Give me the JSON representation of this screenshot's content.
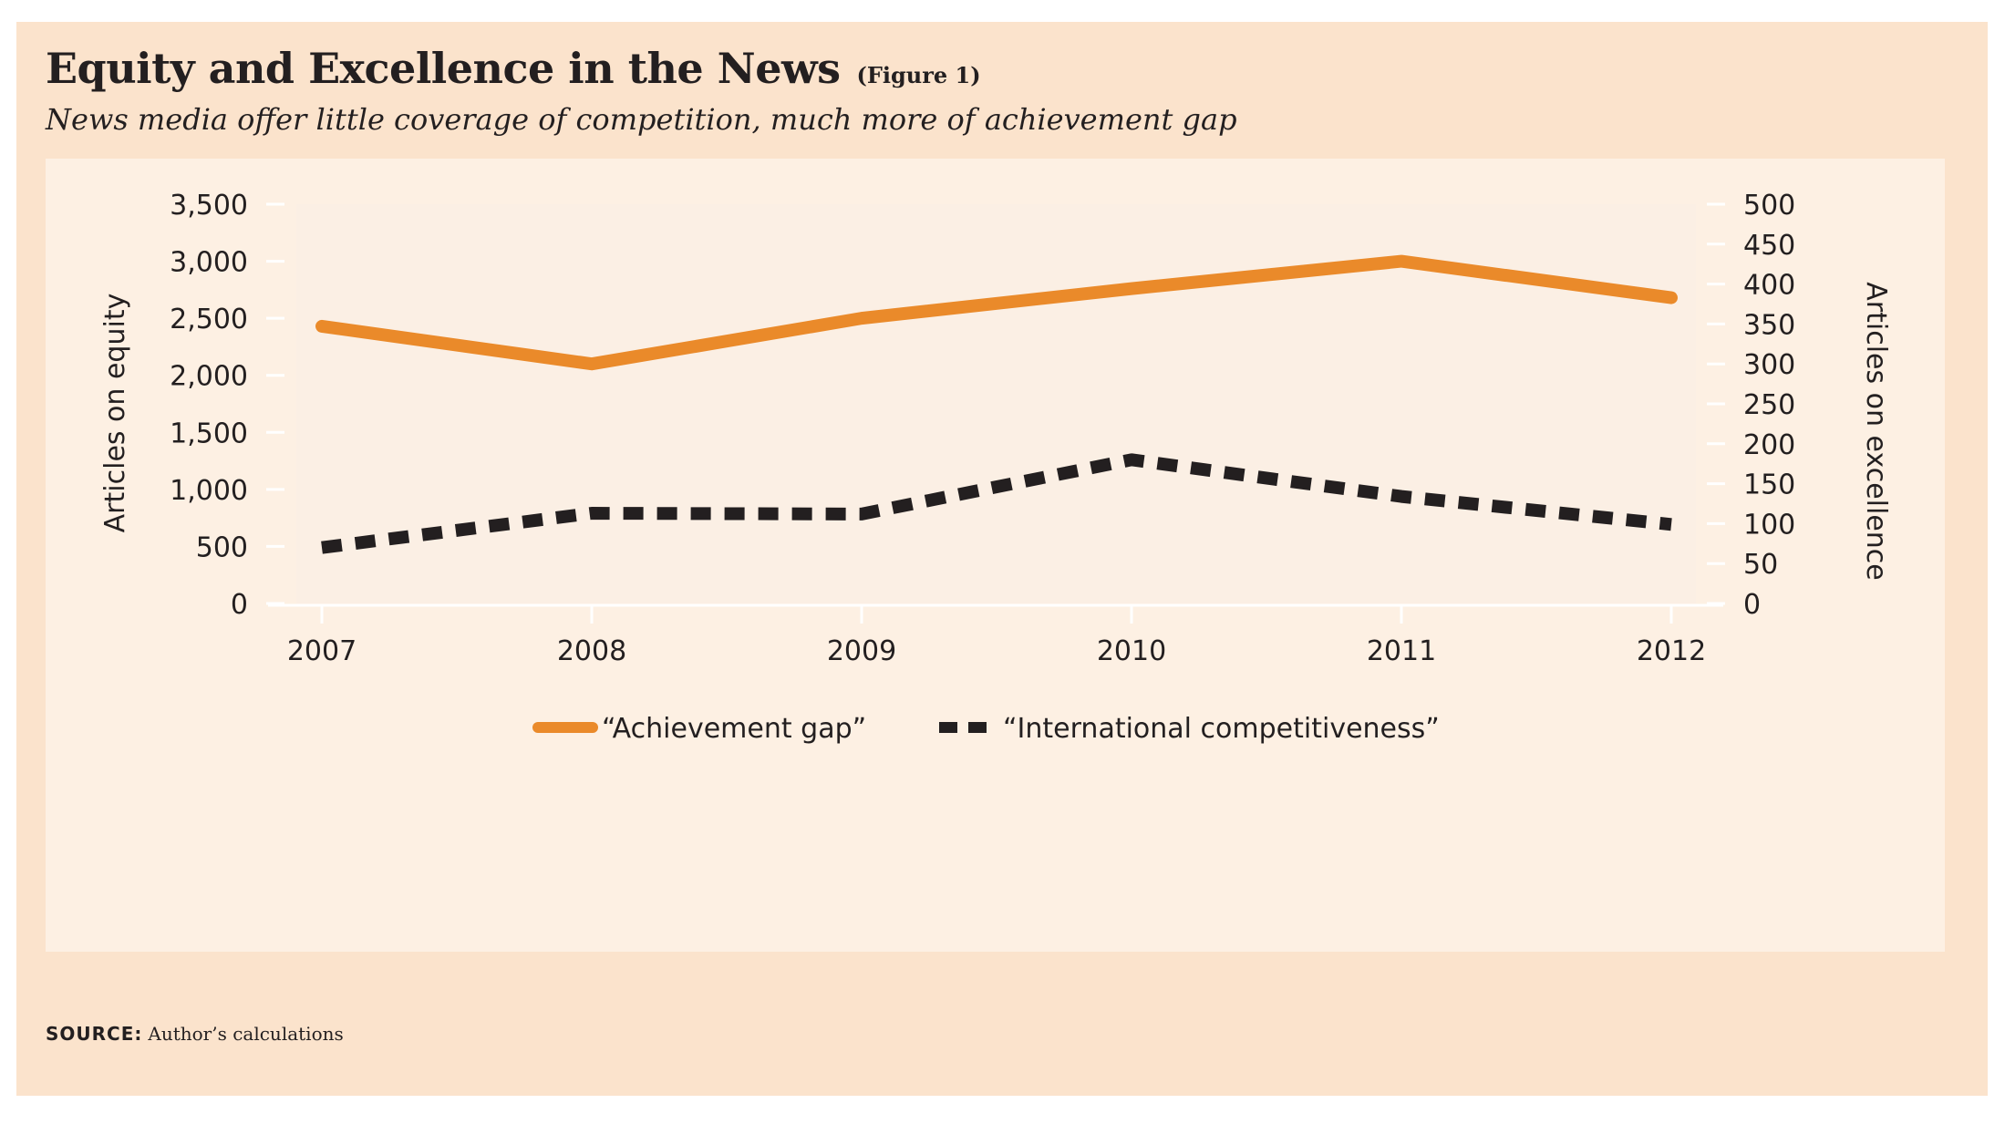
{
  "header": {
    "title": "Equity and Excellence in the News",
    "figure_label": "(Figure 1)",
    "subtitle": "News media offer little coverage of competition, much more of achievement gap"
  },
  "source": {
    "label": "SOURCE:",
    "text": "Author’s calculations"
  },
  "colors": {
    "background": "#fbe3cc",
    "panel": "#fdf0e3",
    "plot_area": "#fbefe4",
    "achievement_gap": "#ea8a2a",
    "international_competitiveness": "#231f20"
  },
  "chart_data": {
    "type": "line",
    "title": "Equity and Excellence in the News",
    "subtitle": "News media offer little coverage of competition, much more of achievement gap",
    "categories": [
      "2007",
      "2008",
      "2009",
      "2010",
      "2011",
      "2012"
    ],
    "ylabel_left": "Articles on equity",
    "ylabel_right": "Articles on excellence",
    "ylim_left": [
      0,
      3500
    ],
    "ylim_right": [
      0,
      500
    ],
    "yticks_left": [
      "0",
      "500",
      "1,000",
      "1,500",
      "2,000",
      "2,500",
      "3,000",
      "3,500"
    ],
    "yticks_right": [
      "0",
      "50",
      "100",
      "150",
      "200",
      "250",
      "300",
      "350",
      "400",
      "450",
      "500"
    ],
    "series": [
      {
        "name": "“Achievement gap”",
        "axis": "left",
        "style": "solid",
        "color": "#ea8a2a",
        "values": [
          2430,
          2100,
          2500,
          2760,
          3000,
          2680
        ]
      },
      {
        "name": "“International competitiveness”",
        "axis": "right",
        "style": "dashed",
        "color": "#231f20",
        "values": [
          70,
          113,
          112,
          180,
          134,
          99
        ]
      }
    ],
    "legend_position": "bottom-center",
    "grid": false
  }
}
